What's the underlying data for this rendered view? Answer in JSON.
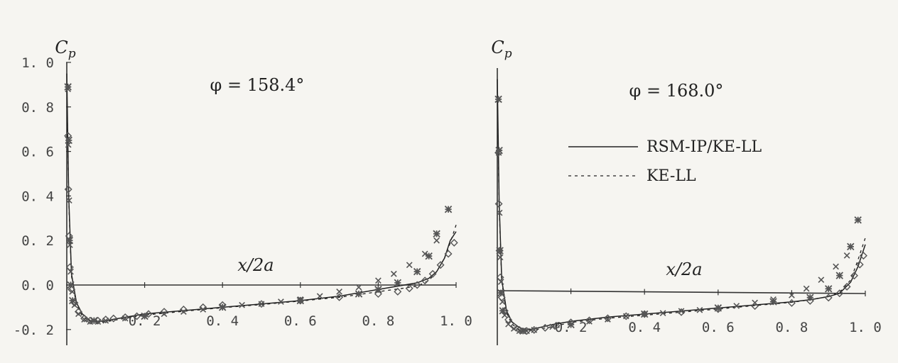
{
  "chart_data": [
    {
      "type": "line",
      "title": "",
      "annotation": "φ = 158.4°",
      "xlabel": "x/2a",
      "ylabel": "C_p",
      "xlim": [
        0,
        1.0
      ],
      "ylim": [
        -0.2,
        1.0
      ],
      "x_ticks": [
        "0.2",
        "0.4",
        "0.6",
        "0.8",
        "1.0"
      ],
      "y_ticks": [
        "-0.2",
        "0.0",
        "0.2",
        "0.4",
        "0.6",
        "0.8",
        "1.0"
      ],
      "series": [
        {
          "style": "solid",
          "points": [
            [
              0.0,
              0.95
            ],
            [
              0.005,
              0.4
            ],
            [
              0.012,
              0.05
            ],
            [
              0.025,
              -0.08
            ],
            [
              0.04,
              -0.13
            ],
            [
              0.06,
              -0.16
            ],
            [
              0.08,
              -0.165
            ],
            [
              0.1,
              -0.16
            ],
            [
              0.15,
              -0.145
            ],
            [
              0.2,
              -0.13
            ],
            [
              0.3,
              -0.115
            ],
            [
              0.4,
              -0.1
            ],
            [
              0.5,
              -0.085
            ],
            [
              0.6,
              -0.07
            ],
            [
              0.7,
              -0.05
            ],
            [
              0.75,
              -0.035
            ],
            [
              0.8,
              -0.02
            ],
            [
              0.85,
              -0.005
            ],
            [
              0.9,
              0.01
            ],
            [
              0.93,
              0.03
            ],
            [
              0.95,
              0.06
            ],
            [
              0.97,
              0.12
            ],
            [
              0.985,
              0.2
            ],
            [
              1.0,
              0.24
            ]
          ]
        },
        {
          "style": "dashed",
          "points": [
            [
              0.0,
              0.9
            ],
            [
              0.005,
              0.38
            ],
            [
              0.012,
              0.04
            ],
            [
              0.025,
              -0.09
            ],
            [
              0.04,
              -0.14
            ],
            [
              0.06,
              -0.165
            ],
            [
              0.08,
              -0.17
            ],
            [
              0.1,
              -0.165
            ],
            [
              0.15,
              -0.15
            ],
            [
              0.2,
              -0.135
            ],
            [
              0.3,
              -0.118
            ],
            [
              0.4,
              -0.102
            ],
            [
              0.5,
              -0.088
            ],
            [
              0.6,
              -0.072
            ],
            [
              0.7,
              -0.055
            ],
            [
              0.75,
              -0.043
            ],
            [
              0.8,
              -0.03
            ],
            [
              0.85,
              -0.018
            ],
            [
              0.9,
              -0.005
            ],
            [
              0.93,
              0.02
            ],
            [
              0.95,
              0.06
            ],
            [
              0.97,
              0.12
            ],
            [
              0.985,
              0.19
            ],
            [
              1.0,
              0.27
            ]
          ]
        },
        {
          "marker": "diamond",
          "points": [
            [
              0.003,
              0.67
            ],
            [
              0.004,
              0.43
            ],
            [
              0.006,
              0.22
            ],
            [
              0.008,
              0.08
            ],
            [
              0.012,
              -0.02
            ],
            [
              0.02,
              -0.08
            ],
            [
              0.03,
              -0.12
            ],
            [
              0.045,
              -0.15
            ],
            [
              0.06,
              -0.16
            ],
            [
              0.08,
              -0.16
            ],
            [
              0.1,
              -0.155
            ],
            [
              0.12,
              -0.15
            ],
            [
              0.15,
              -0.145
            ],
            [
              0.18,
              -0.14
            ],
            [
              0.21,
              -0.13
            ],
            [
              0.25,
              -0.12
            ],
            [
              0.3,
              -0.11
            ],
            [
              0.35,
              -0.1
            ],
            [
              0.4,
              -0.09
            ],
            [
              0.5,
              -0.085
            ],
            [
              0.6,
              -0.07
            ],
            [
              0.7,
              -0.055
            ],
            [
              0.8,
              -0.04
            ],
            [
              0.85,
              -0.03
            ],
            [
              0.88,
              -0.015
            ],
            [
              0.9,
              0.0
            ],
            [
              0.92,
              0.02
            ],
            [
              0.94,
              0.05
            ],
            [
              0.96,
              0.09
            ],
            [
              0.98,
              0.14
            ],
            [
              0.995,
              0.19
            ]
          ]
        },
        {
          "marker": "cross",
          "points": [
            [
              0.003,
              0.88
            ],
            [
              0.004,
              0.63
            ],
            [
              0.006,
              0.38
            ],
            [
              0.008,
              0.18
            ],
            [
              0.01,
              0.06
            ],
            [
              0.014,
              -0.03
            ],
            [
              0.02,
              -0.09
            ],
            [
              0.03,
              -0.13
            ],
            [
              0.045,
              -0.155
            ],
            [
              0.06,
              -0.165
            ],
            [
              0.08,
              -0.165
            ],
            [
              0.1,
              -0.16
            ],
            [
              0.15,
              -0.15
            ],
            [
              0.2,
              -0.14
            ],
            [
              0.25,
              -0.13
            ],
            [
              0.3,
              -0.12
            ],
            [
              0.35,
              -0.11
            ],
            [
              0.4,
              -0.1
            ],
            [
              0.45,
              -0.09
            ],
            [
              0.5,
              -0.085
            ],
            [
              0.55,
              -0.075
            ],
            [
              0.6,
              -0.065
            ],
            [
              0.65,
              -0.05
            ],
            [
              0.7,
              -0.03
            ],
            [
              0.75,
              -0.01
            ],
            [
              0.8,
              0.02
            ],
            [
              0.84,
              0.05
            ],
            [
              0.88,
              0.09
            ],
            [
              0.92,
              0.14
            ],
            [
              0.95,
              0.2
            ]
          ]
        },
        {
          "marker": "star",
          "points": [
            [
              0.003,
              0.89
            ],
            [
              0.005,
              0.65
            ],
            [
              0.007,
              0.2
            ],
            [
              0.01,
              0.0
            ],
            [
              0.015,
              -0.07
            ],
            [
              0.07,
              -0.16
            ],
            [
              0.2,
              -0.14
            ],
            [
              0.4,
              -0.1
            ],
            [
              0.6,
              -0.07
            ],
            [
              0.75,
              -0.04
            ],
            [
              0.8,
              -0.02
            ],
            [
              0.85,
              0.01
            ],
            [
              0.9,
              0.06
            ],
            [
              0.93,
              0.13
            ],
            [
              0.95,
              0.23
            ],
            [
              0.98,
              0.34
            ]
          ]
        }
      ]
    },
    {
      "type": "line",
      "title": "",
      "annotation": "φ = 168.0°",
      "xlabel": "x/2a",
      "ylabel": "C_p",
      "xlim": [
        0,
        1.0
      ],
      "ylim": [
        -0.2,
        1.0
      ],
      "x_ticks": [
        "0.2",
        "0.4",
        "0.6",
        "0.8",
        "1.0"
      ],
      "y_ticks": [],
      "legend": {
        "placement": "right",
        "entries": [
          {
            "label": "RSM-IP/KE-LL",
            "style": "solid"
          },
          {
            "label": "KE-LL",
            "style": "dashed"
          }
        ]
      },
      "series": [
        {
          "name": "RSM-IP/KE-LL",
          "style": "solid",
          "points": [
            [
              0.0,
              0.95
            ],
            [
              0.005,
              0.4
            ],
            [
              0.012,
              0.05
            ],
            [
              0.025,
              -0.09
            ],
            [
              0.04,
              -0.14
            ],
            [
              0.06,
              -0.165
            ],
            [
              0.08,
              -0.175
            ],
            [
              0.1,
              -0.17
            ],
            [
              0.15,
              -0.15
            ],
            [
              0.2,
              -0.135
            ],
            [
              0.3,
              -0.115
            ],
            [
              0.4,
              -0.1
            ],
            [
              0.5,
              -0.085
            ],
            [
              0.6,
              -0.07
            ],
            [
              0.7,
              -0.055
            ],
            [
              0.8,
              -0.04
            ],
            [
              0.85,
              -0.03
            ],
            [
              0.9,
              -0.015
            ],
            [
              0.93,
              0.0
            ],
            [
              0.96,
              0.05
            ],
            [
              0.98,
              0.12
            ],
            [
              1.0,
              0.22
            ]
          ]
        },
        {
          "name": "KE-LL",
          "style": "dashed",
          "points": [
            [
              0.0,
              0.9
            ],
            [
              0.005,
              0.38
            ],
            [
              0.012,
              0.04
            ],
            [
              0.025,
              -0.1
            ],
            [
              0.04,
              -0.15
            ],
            [
              0.06,
              -0.175
            ],
            [
              0.08,
              -0.18
            ],
            [
              0.1,
              -0.175
            ],
            [
              0.15,
              -0.16
            ],
            [
              0.2,
              -0.14
            ],
            [
              0.3,
              -0.12
            ],
            [
              0.4,
              -0.105
            ],
            [
              0.5,
              -0.09
            ],
            [
              0.6,
              -0.075
            ],
            [
              0.7,
              -0.058
            ],
            [
              0.8,
              -0.042
            ],
            [
              0.85,
              -0.03
            ],
            [
              0.9,
              -0.015
            ],
            [
              0.93,
              0.005
            ],
            [
              0.96,
              0.06
            ],
            [
              0.98,
              0.15
            ],
            [
              1.0,
              0.25
            ]
          ]
        },
        {
          "marker": "diamond",
          "points": [
            [
              0.003,
              0.62
            ],
            [
              0.004,
              0.39
            ],
            [
              0.006,
              0.18
            ],
            [
              0.008,
              0.06
            ],
            [
              0.012,
              -0.03
            ],
            [
              0.02,
              -0.09
            ],
            [
              0.03,
              -0.13
            ],
            [
              0.045,
              -0.16
            ],
            [
              0.06,
              -0.175
            ],
            [
              0.08,
              -0.18
            ],
            [
              0.1,
              -0.175
            ],
            [
              0.13,
              -0.165
            ],
            [
              0.16,
              -0.155
            ],
            [
              0.2,
              -0.14
            ],
            [
              0.25,
              -0.13
            ],
            [
              0.3,
              -0.12
            ],
            [
              0.35,
              -0.11
            ],
            [
              0.4,
              -0.1
            ],
            [
              0.5,
              -0.09
            ],
            [
              0.6,
              -0.075
            ],
            [
              0.7,
              -0.06
            ],
            [
              0.8,
              -0.045
            ],
            [
              0.85,
              -0.035
            ],
            [
              0.9,
              -0.02
            ],
            [
              0.93,
              0.0
            ],
            [
              0.95,
              0.03
            ],
            [
              0.97,
              0.08
            ],
            [
              0.985,
              0.13
            ],
            [
              0.995,
              0.17
            ]
          ]
        },
        {
          "marker": "cross",
          "points": [
            [
              0.003,
              0.86
            ],
            [
              0.004,
              0.62
            ],
            [
              0.006,
              0.35
            ],
            [
              0.008,
              0.15
            ],
            [
              0.01,
              0.04
            ],
            [
              0.014,
              -0.05
            ],
            [
              0.02,
              -0.11
            ],
            [
              0.03,
              -0.15
            ],
            [
              0.045,
              -0.17
            ],
            [
              0.06,
              -0.18
            ],
            [
              0.08,
              -0.18
            ],
            [
              0.1,
              -0.175
            ],
            [
              0.15,
              -0.16
            ],
            [
              0.2,
              -0.15
            ],
            [
              0.25,
              -0.135
            ],
            [
              0.3,
              -0.125
            ],
            [
              0.35,
              -0.11
            ],
            [
              0.4,
              -0.1
            ],
            [
              0.45,
              -0.095
            ],
            [
              0.5,
              -0.085
            ],
            [
              0.55,
              -0.08
            ],
            [
              0.6,
              -0.07
            ],
            [
              0.65,
              -0.06
            ],
            [
              0.7,
              -0.045
            ],
            [
              0.75,
              -0.03
            ],
            [
              0.8,
              -0.01
            ],
            [
              0.84,
              0.02
            ],
            [
              0.88,
              0.06
            ],
            [
              0.92,
              0.12
            ],
            [
              0.95,
              0.17
            ]
          ]
        },
        {
          "marker": "star",
          "points": [
            [
              0.003,
              0.86
            ],
            [
              0.005,
              0.63
            ],
            [
              0.007,
              0.18
            ],
            [
              0.01,
              -0.01
            ],
            [
              0.015,
              -0.09
            ],
            [
              0.07,
              -0.18
            ],
            [
              0.2,
              -0.15
            ],
            [
              0.4,
              -0.1
            ],
            [
              0.6,
              -0.07
            ],
            [
              0.75,
              -0.04
            ],
            [
              0.85,
              -0.02
            ],
            [
              0.9,
              0.02
            ],
            [
              0.93,
              0.08
            ],
            [
              0.96,
              0.21
            ],
            [
              0.98,
              0.33
            ]
          ]
        }
      ]
    }
  ]
}
